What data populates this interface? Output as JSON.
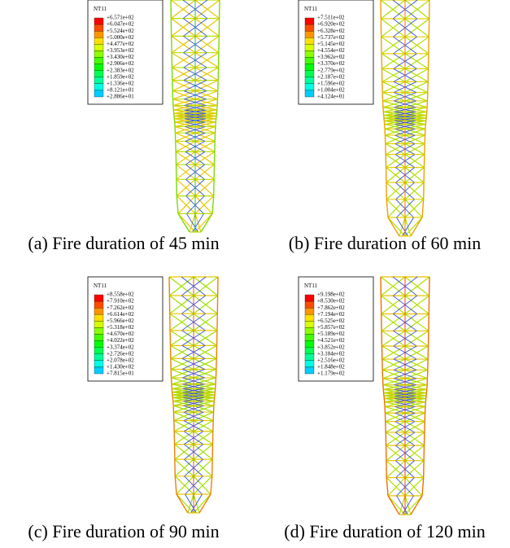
{
  "panels": [
    {
      "legend_title": "NT11",
      "legend_values": [
        "+6.571e+02",
        "+6.047e+02",
        "+5.524e+02",
        "+5.000e+02",
        "+4.477e+02",
        "+3.953e+02",
        "+3.430e+02",
        "+2.906e+02",
        "+2.383e+02",
        "+1.859e+02",
        "+1.336e+02",
        "+8.121e+01",
        "+2.886e+01"
      ],
      "caption": "(a) Fire duration of 45 min"
    },
    {
      "legend_title": "NT11",
      "legend_values": [
        "+7.511e+02",
        "+6.920e+02",
        "+6.328e+02",
        "+5.737e+02",
        "+5.145e+02",
        "+4.554e+02",
        "+3.962e+02",
        "+3.370e+02",
        "+2.779e+02",
        "+2.187e+02",
        "+1.596e+02",
        "+1.004e+02",
        "+4.124e+01"
      ],
      "caption": "(b) Fire duration of 60 min"
    },
    {
      "legend_title": "NT11",
      "legend_values": [
        "+8.558e+02",
        "+7.910e+02",
        "+7.262e+02",
        "+6.614e+02",
        "+5.966e+02",
        "+5.318e+02",
        "+4.670e+02",
        "+4.022e+02",
        "+3.374e+02",
        "+2.726e+02",
        "+2.078e+02",
        "+1.430e+02",
        "+7.815e+01"
      ],
      "caption": "(c) Fire duration of 90 min"
    },
    {
      "legend_title": "NT11",
      "legend_values": [
        "+9.198e+02",
        "+8.530e+02",
        "+7.862e+02",
        "+7.194e+02",
        "+6.525e+02",
        "+5.857e+02",
        "+5.189e+02",
        "+4.521e+02",
        "+3.852e+02",
        "+3.184e+02",
        "+2.516e+02",
        "+1.848e+02",
        "+1.179e+02"
      ],
      "caption": "(d) Fire duration of 120 min"
    }
  ],
  "legend_colors": [
    "#ff0000",
    "#ff4a00",
    "#ff9400",
    "#ffde00",
    "#d6ff00",
    "#8cff00",
    "#42ff00",
    "#00ff08",
    "#00ff52",
    "#00ff9c",
    "#00ffe6",
    "#00ceff",
    "#0000ff"
  ]
}
